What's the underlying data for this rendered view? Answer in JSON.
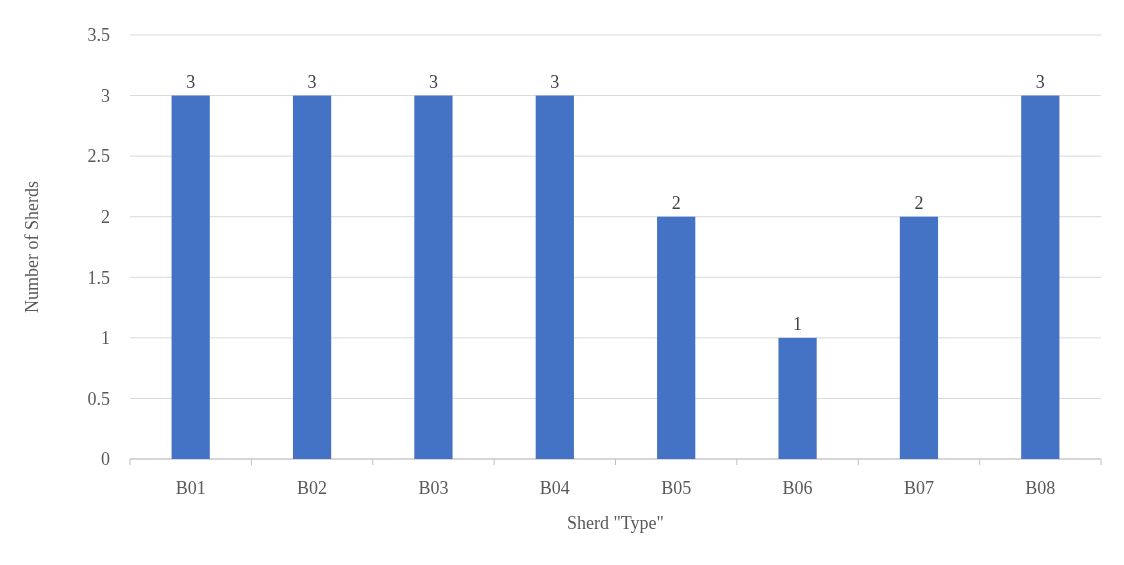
{
  "chart_data": {
    "type": "bar",
    "xlabel": "Sherd \"Type\"",
    "ylabel": "Number of Sherds",
    "categories": [
      "B01",
      "B02",
      "B03",
      "B04",
      "B05",
      "B06",
      "B07",
      "B08"
    ],
    "values": [
      3,
      3,
      3,
      3,
      2,
      1,
      2,
      3
    ],
    "color": "#4472c4",
    "ylim": [
      0,
      3.5
    ],
    "yticks": [
      0,
      0.5,
      1,
      1.5,
      2,
      2.5,
      3,
      3.5
    ],
    "grid": "y",
    "data_labels": true
  }
}
